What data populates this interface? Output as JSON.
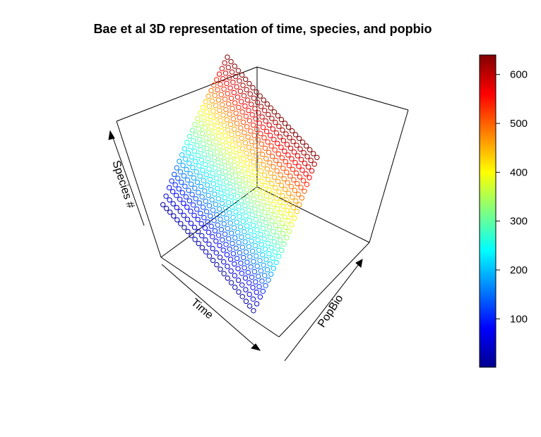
{
  "chart_data": {
    "type": "scatter",
    "title": "Bae et al 3D representation of time, species, and popbio",
    "axes": {
      "x_label": "Time",
      "y_label": "PopBio",
      "z_label": "Species #"
    },
    "colorbar": {
      "range": [
        1,
        640
      ],
      "ticks": [
        100,
        200,
        300,
        400,
        500,
        600
      ],
      "palette": [
        "#00008f",
        "#0000ff",
        "#0080ff",
        "#00ffff",
        "#80ff80",
        "#ffff00",
        "#ff8000",
        "#ff0000",
        "#800000"
      ]
    },
    "series": [
      {
        "t": 0.02,
        "species": 1
      },
      {
        "t": 0.07,
        "species": 2
      },
      {
        "t": 0.12,
        "species": 3
      },
      {
        "t": 0.16,
        "species": 4
      },
      {
        "t": 0.2,
        "species": 5
      },
      {
        "t": 0.24,
        "species": 6
      },
      {
        "t": 0.28,
        "species": 7
      },
      {
        "t": 0.32,
        "species": 8
      },
      {
        "t": 0.36,
        "species": 9
      },
      {
        "t": 0.4,
        "species": 10
      },
      {
        "t": 0.44,
        "species": 11
      },
      {
        "t": 0.48,
        "species": 12
      },
      {
        "t": 0.52,
        "species": 13
      },
      {
        "t": 0.56,
        "species": 14
      },
      {
        "t": 0.6,
        "species": 15
      },
      {
        "t": 0.64,
        "species": 16
      },
      {
        "t": 0.68,
        "species": 17
      },
      {
        "t": 0.72,
        "species": 18
      },
      {
        "t": 0.76,
        "species": 19
      },
      {
        "t": 0.8,
        "species": 20
      },
      {
        "t": 0.84,
        "species": 21
      },
      {
        "t": 0.88,
        "species": 22
      },
      {
        "t": 0.92,
        "species": 23
      },
      {
        "t": 0.96,
        "species": 24
      },
      {
        "t": 1.0,
        "species": 25
      }
    ]
  }
}
